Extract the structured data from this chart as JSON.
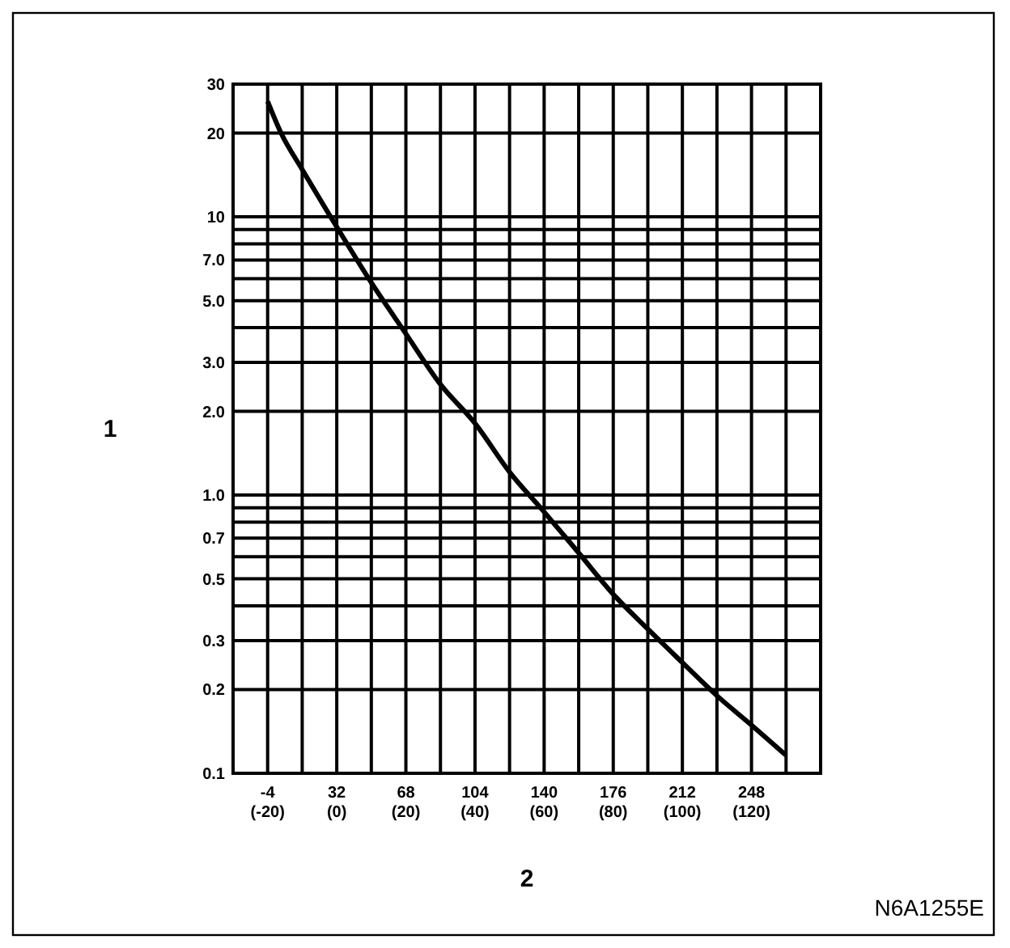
{
  "chart_data": {
    "type": "line",
    "xlabel": "2",
    "ylabel": "1",
    "annotations": [
      "N6A1255E"
    ],
    "log": "y",
    "grid": true,
    "marker": "none",
    "line_style": "solid",
    "xlim": [
      -22,
      284
    ],
    "ylim": [
      0.1,
      30
    ],
    "x2lim": [
      -30,
      140
    ],
    "xticks": [
      -4,
      {
        "value": 14,
        "label": null
      },
      32,
      {
        "value": 50,
        "label": null
      },
      68,
      {
        "value": 86,
        "label": null
      },
      104,
      {
        "value": 122,
        "label": null
      },
      140,
      {
        "value": 158,
        "label": null
      },
      176,
      {
        "value": 194,
        "label": null
      },
      212,
      {
        "value": 230,
        "label": null
      },
      248,
      {
        "value": 266,
        "label": null
      }
    ],
    "x2ticks": [
      {
        "value": -20,
        "label": "(-20)"
      },
      {
        "value": 0,
        "label": "(0)"
      },
      {
        "value": 20,
        "label": "(20)"
      },
      {
        "value": 40,
        "label": "(40)"
      },
      {
        "value": 60,
        "label": "(60)"
      },
      {
        "value": 80,
        "label": "(80)"
      },
      {
        "value": 100,
        "label": "(100)"
      },
      {
        "value": 120,
        "label": "(120)"
      }
    ],
    "yticks": [
      0.1,
      0.2,
      0.3,
      {
        "value": 0.4,
        "label": null
      },
      0.5,
      {
        "value": 0.6,
        "label": null
      },
      0.7,
      {
        "value": 0.8,
        "label": null
      },
      {
        "value": 0.9,
        "label": null
      },
      {
        "value": 1,
        "label": "1.0"
      },
      {
        "value": 2,
        "label": "2.0"
      },
      {
        "value": 3,
        "label": "3.0"
      },
      {
        "value": 4,
        "label": null
      },
      {
        "value": 5,
        "label": "5.0"
      },
      {
        "value": 6,
        "label": null
      },
      {
        "value": 7,
        "label": "7.0"
      },
      {
        "value": 8,
        "label": null
      },
      {
        "value": 9,
        "label": null
      },
      10,
      20,
      30
    ],
    "series": [
      {
        "color": "#000000",
        "x": [
          -4,
          3,
          14,
          32,
          50,
          68,
          86,
          104,
          122,
          140,
          158,
          176,
          194,
          212,
          230,
          248,
          266
        ],
        "values": [
          26,
          20,
          14.8,
          9.2,
          5.8,
          3.8,
          2.5,
          1.81,
          1.21,
          0.87,
          0.62,
          0.44,
          0.33,
          0.25,
          0.19,
          0.149,
          0.116
        ]
      }
    ]
  }
}
